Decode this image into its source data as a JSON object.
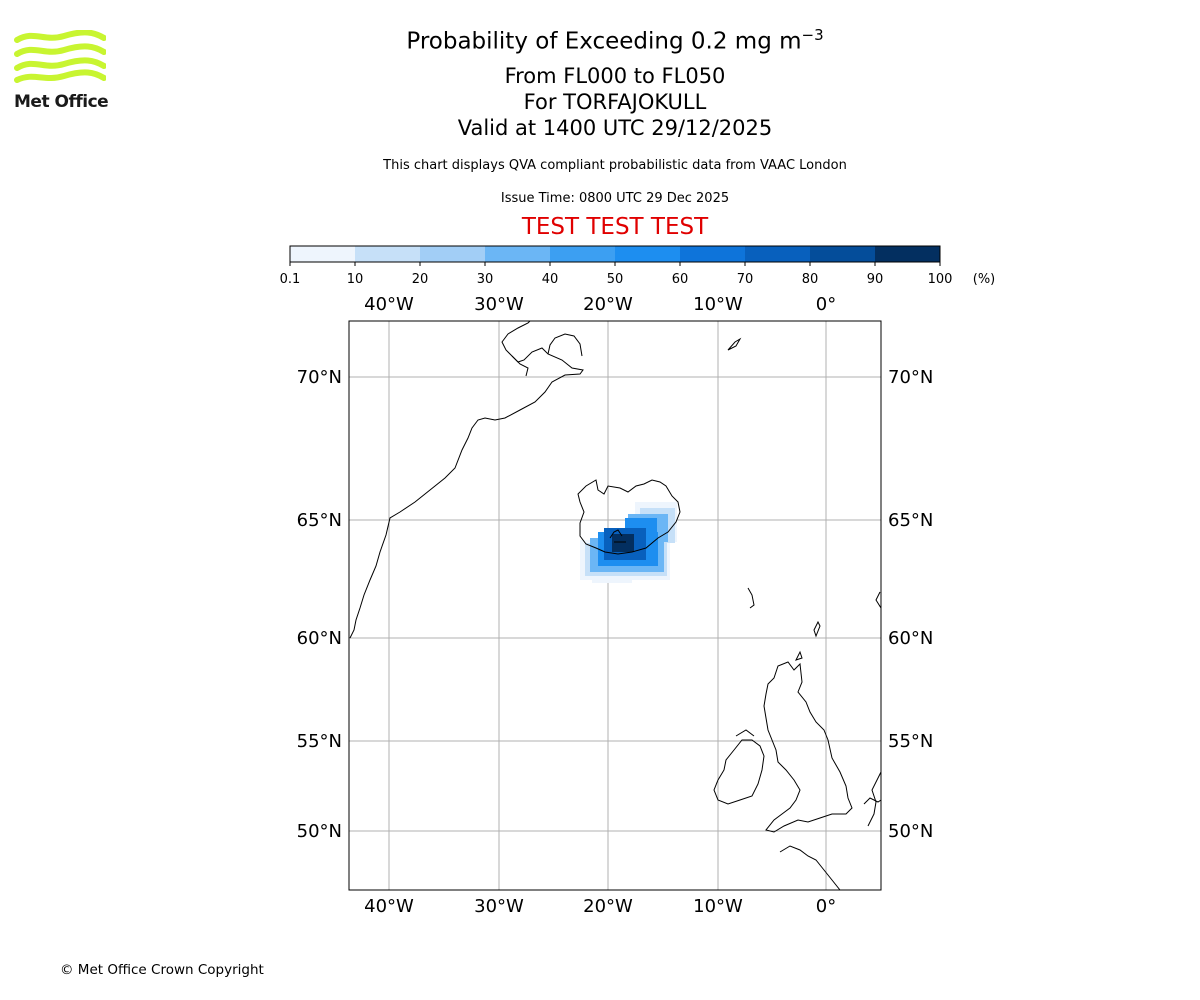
{
  "logo": {
    "name": "Met Office"
  },
  "header": {
    "title_main": "Probability of Exceeding 0.2 mg m",
    "title_exp": "−3",
    "line1": "From FL000 to FL050",
    "line2": "For TORFAJOKULL",
    "line3": "Valid at 1400 UTC 29/12/2025",
    "description": "This chart displays QVA compliant probabilistic data from VAAC London",
    "issue_time": "Issue Time: 0800 UTC 29 Dec 2025",
    "test_banner": "TEST TEST TEST"
  },
  "colorbar": {
    "ticks": [
      "0.1",
      "10",
      "20",
      "30",
      "40",
      "50",
      "60",
      "70",
      "80",
      "90",
      "100"
    ],
    "unit": "(%)",
    "colors": [
      "#eef5fd",
      "#c6e0f8",
      "#a2cef6",
      "#6bb6f5",
      "#3c9ff2",
      "#1d8ef0",
      "#0e74da",
      "#0860bd",
      "#044d9a",
      "#032f60"
    ]
  },
  "map": {
    "lon_labels": [
      "40°W",
      "30°W",
      "20°W",
      "10°W",
      "0°"
    ],
    "lat_labels": [
      "70°N",
      "65°N",
      "60°N",
      "55°N",
      "50°N"
    ],
    "lon_ticks": [
      -40,
      -30,
      -20,
      -10,
      0
    ],
    "lat_ticks": [
      70,
      65,
      60,
      55,
      50
    ],
    "plume_level_colors": [
      "#c6e0f8",
      "#6bb6f5",
      "#1d8ef0",
      "#0860bd",
      "#032f60"
    ]
  },
  "footer": {
    "copyright": "© Met Office Crown Copyright"
  }
}
